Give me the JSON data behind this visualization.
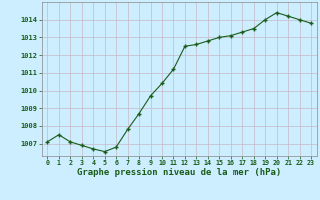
{
  "x": [
    0,
    1,
    2,
    3,
    4,
    5,
    6,
    7,
    8,
    9,
    10,
    11,
    12,
    13,
    14,
    15,
    16,
    17,
    18,
    19,
    20,
    21,
    22,
    23
  ],
  "y": [
    1007.1,
    1007.5,
    1007.1,
    1006.9,
    1006.7,
    1006.55,
    1006.8,
    1007.8,
    1008.7,
    1009.7,
    1010.4,
    1011.2,
    1012.5,
    1012.6,
    1012.8,
    1013.0,
    1013.1,
    1013.3,
    1013.5,
    1014.0,
    1014.4,
    1014.2,
    1014.0,
    1013.8
  ],
  "line_color": "#1a5c1a",
  "marker_color": "#1a5c1a",
  "bg_color": "#cceeff",
  "grid_color_v": "#c8b8c8",
  "grid_color_h": "#c8b8c8",
  "xlabel": "Graphe pression niveau de la mer (hPa)",
  "xlabel_color": "#1a5c1a",
  "tick_label_color": "#1a5c1a",
  "ylim_min": 1006.3,
  "ylim_max": 1015.0,
  "yticks": [
    1007,
    1008,
    1009,
    1010,
    1011,
    1012,
    1013,
    1014
  ],
  "xticks": [
    0,
    1,
    2,
    3,
    4,
    5,
    6,
    7,
    8,
    9,
    10,
    11,
    12,
    13,
    14,
    15,
    16,
    17,
    18,
    19,
    20,
    21,
    22,
    23
  ],
  "fig_bg": "#cceeff"
}
